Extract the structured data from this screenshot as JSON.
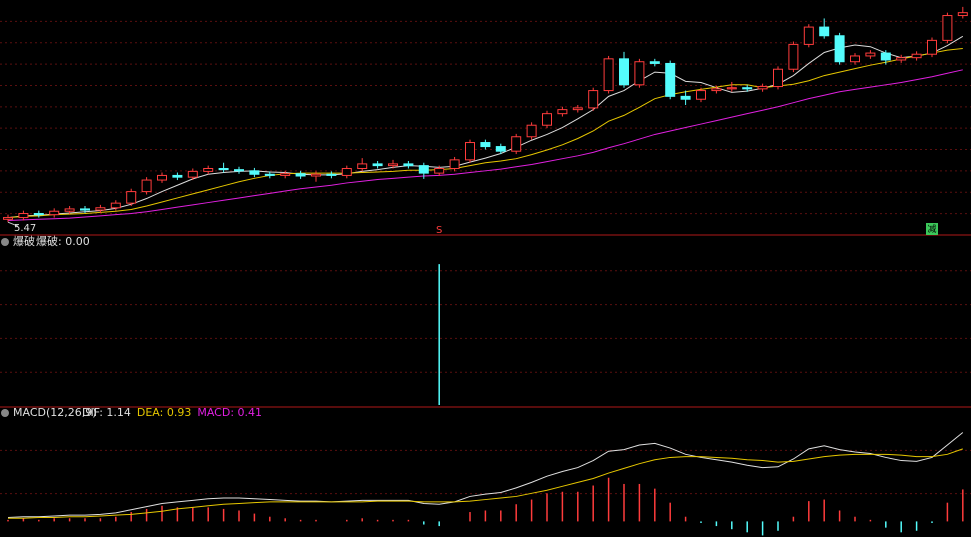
{
  "chart_data": [
    {
      "type": "candlestick",
      "open": [
        5.52,
        5.55,
        5.62,
        5.6,
        5.66,
        5.7,
        5.68,
        5.72,
        5.8,
        6.0,
        6.2,
        6.28,
        6.25,
        6.35,
        6.4,
        6.38,
        6.36,
        6.3,
        6.28,
        6.31,
        6.27,
        6.3,
        6.28,
        6.4,
        6.48,
        6.45,
        6.48,
        6.45,
        6.32,
        6.4,
        6.55,
        6.85,
        6.78,
        6.7,
        6.95,
        7.15,
        7.35,
        7.42,
        7.45,
        7.75,
        8.3,
        7.85,
        8.25,
        8.22,
        7.65,
        7.6,
        7.75,
        7.78,
        7.8,
        7.78,
        7.82,
        8.12,
        8.55,
        8.85,
        8.7,
        8.25,
        8.35,
        8.4,
        8.28,
        8.32,
        8.38,
        8.62,
        9.05
      ],
      "high": [
        5.6,
        5.67,
        5.67,
        5.71,
        5.75,
        5.75,
        5.77,
        5.85,
        6.05,
        6.25,
        6.33,
        6.33,
        6.4,
        6.45,
        6.5,
        6.43,
        6.41,
        6.35,
        6.36,
        6.36,
        6.35,
        6.35,
        6.45,
        6.58,
        6.53,
        6.55,
        6.53,
        6.5,
        6.45,
        6.6,
        6.9,
        6.9,
        6.83,
        7.0,
        7.2,
        7.4,
        7.47,
        7.5,
        7.8,
        8.35,
        8.42,
        8.3,
        8.3,
        8.27,
        7.75,
        7.8,
        7.83,
        7.9,
        7.85,
        7.87,
        8.17,
        8.6,
        8.9,
        9.0,
        8.75,
        8.4,
        8.45,
        8.45,
        8.37,
        8.43,
        8.67,
        9.1,
        9.2
      ],
      "low": [
        5.47,
        5.5,
        5.55,
        5.55,
        5.61,
        5.63,
        5.63,
        5.67,
        5.75,
        5.95,
        6.15,
        6.2,
        6.2,
        6.3,
        6.33,
        6.31,
        6.25,
        6.23,
        6.23,
        6.22,
        6.17,
        6.23,
        6.23,
        6.35,
        6.4,
        6.4,
        6.4,
        6.22,
        6.27,
        6.35,
        6.5,
        6.73,
        6.65,
        6.65,
        6.9,
        7.1,
        7.3,
        7.37,
        7.4,
        7.7,
        7.8,
        7.8,
        8.17,
        7.6,
        7.5,
        7.55,
        7.7,
        7.73,
        7.73,
        7.73,
        7.77,
        8.07,
        8.5,
        8.65,
        8.2,
        8.2,
        8.3,
        8.2,
        8.23,
        8.27,
        8.33,
        8.57,
        9.0
      ],
      "close": [
        5.55,
        5.62,
        5.6,
        5.66,
        5.7,
        5.68,
        5.72,
        5.8,
        6.0,
        6.2,
        6.28,
        6.25,
        6.35,
        6.4,
        6.38,
        6.36,
        6.3,
        6.28,
        6.31,
        6.27,
        6.3,
        6.28,
        6.4,
        6.48,
        6.45,
        6.48,
        6.45,
        6.32,
        6.4,
        6.55,
        6.85,
        6.78,
        6.7,
        6.95,
        7.15,
        7.35,
        7.42,
        7.45,
        7.75,
        8.3,
        7.85,
        8.25,
        8.22,
        7.65,
        7.6,
        7.75,
        7.78,
        7.8,
        7.78,
        7.82,
        8.12,
        8.55,
        8.85,
        8.7,
        8.25,
        8.35,
        8.4,
        8.28,
        8.32,
        8.38,
        8.62,
        9.05,
        9.1
      ],
      "up_color": "#ff3c3c",
      "down_color": "#54fcfc",
      "series": [
        {
          "color": "#dcdcdc",
          "values": [
            5.55,
            5.58,
            5.59,
            5.61,
            5.63,
            5.65,
            5.67,
            5.71,
            5.78,
            5.88,
            6.0,
            6.11,
            6.22,
            6.3,
            6.33,
            6.35,
            6.36,
            6.34,
            6.33,
            6.3,
            6.29,
            6.29,
            6.31,
            6.35,
            6.38,
            6.42,
            6.45,
            6.44,
            6.42,
            6.44,
            6.51,
            6.58,
            6.66,
            6.77,
            6.89,
            6.99,
            7.11,
            7.26,
            7.42,
            7.65,
            7.75,
            7.92,
            8.07,
            8.05,
            7.91,
            7.89,
            7.8,
            7.72,
            7.74,
            7.79,
            7.86,
            8.01,
            8.22,
            8.41,
            8.49,
            8.54,
            8.51,
            8.4,
            8.32,
            8.35,
            8.4,
            8.53,
            8.69
          ]
        },
        {
          "color": "#e6c700",
          "values": [
            5.55,
            5.57,
            5.58,
            5.6,
            5.61,
            5.62,
            5.64,
            5.66,
            5.69,
            5.75,
            5.82,
            5.89,
            5.96,
            6.03,
            6.1,
            6.17,
            6.23,
            6.28,
            6.31,
            6.32,
            6.32,
            6.32,
            6.32,
            6.33,
            6.34,
            6.35,
            6.37,
            6.37,
            6.38,
            6.4,
            6.45,
            6.5,
            6.53,
            6.57,
            6.64,
            6.72,
            6.81,
            6.92,
            7.05,
            7.22,
            7.32,
            7.46,
            7.61,
            7.68,
            7.73,
            7.77,
            7.81,
            7.85,
            7.85,
            7.8,
            7.83,
            7.86,
            7.92,
            8.01,
            8.07,
            8.13,
            8.19,
            8.24,
            8.3,
            8.35,
            8.4,
            8.45,
            8.48
          ]
        },
        {
          "color": "#e020e0",
          "values": [
            5.5,
            5.51,
            5.52,
            5.53,
            5.54,
            5.56,
            5.58,
            5.6,
            5.62,
            5.65,
            5.69,
            5.73,
            5.77,
            5.81,
            5.85,
            5.89,
            5.93,
            5.97,
            6.01,
            6.05,
            6.08,
            6.11,
            6.15,
            6.18,
            6.21,
            6.23,
            6.25,
            6.27,
            6.28,
            6.3,
            6.33,
            6.36,
            6.39,
            6.43,
            6.47,
            6.52,
            6.57,
            6.62,
            6.68,
            6.76,
            6.83,
            6.91,
            6.99,
            7.05,
            7.11,
            7.17,
            7.23,
            7.29,
            7.35,
            7.41,
            7.47,
            7.54,
            7.61,
            7.67,
            7.73,
            7.77,
            7.81,
            7.85,
            7.89,
            7.94,
            7.99,
            8.05,
            8.11
          ]
        }
      ],
      "signals": [
        {
          "at": 28,
          "label": "S",
          "color": "#ff3c3c"
        },
        {
          "at": 60,
          "label": "减",
          "color": "#3cc85a"
        }
      ],
      "ylim": [
        5.3,
        9.25
      ]
    },
    {
      "type": "bar",
      "title": "爆破",
      "readout": "爆破: 0.00",
      "color": "#54fcfc",
      "values": [
        0,
        0,
        0,
        0,
        0,
        0,
        0,
        0,
        0,
        0,
        0,
        0,
        0,
        0,
        0,
        0,
        0,
        0,
        0,
        0,
        0,
        0,
        0,
        0,
        0,
        0,
        0,
        0,
        1,
        0,
        0,
        0,
        0,
        0,
        0,
        0,
        0,
        0,
        0,
        0,
        0,
        0,
        0,
        0,
        0,
        0,
        0,
        0,
        0,
        0,
        0,
        0,
        0,
        0,
        0,
        0,
        0,
        0,
        0,
        0,
        0,
        0,
        0
      ],
      "ylim": [
        0,
        1.1
      ]
    },
    {
      "type": "macd",
      "title": "MACD(12,26,9)",
      "series": [
        {
          "label": "DIF: 1.14",
          "color": "#e0e0e0",
          "values": [
            0.05,
            0.06,
            0.06,
            0.07,
            0.08,
            0.08,
            0.09,
            0.11,
            0.15,
            0.19,
            0.23,
            0.25,
            0.27,
            0.29,
            0.3,
            0.3,
            0.29,
            0.28,
            0.27,
            0.26,
            0.26,
            0.25,
            0.26,
            0.27,
            0.27,
            0.27,
            0.27,
            0.23,
            0.22,
            0.25,
            0.32,
            0.35,
            0.37,
            0.43,
            0.5,
            0.58,
            0.64,
            0.69,
            0.78,
            0.9,
            0.92,
            0.98,
            1.0,
            0.94,
            0.86,
            0.82,
            0.79,
            0.76,
            0.72,
            0.69,
            0.7,
            0.8,
            0.93,
            0.97,
            0.92,
            0.89,
            0.87,
            0.82,
            0.78,
            0.77,
            0.82,
            0.98,
            1.14
          ]
        },
        {
          "label": "DEA: 0.93",
          "color": "#e6c700",
          "values": [
            0.04,
            0.04,
            0.05,
            0.05,
            0.06,
            0.06,
            0.07,
            0.08,
            0.09,
            0.11,
            0.13,
            0.16,
            0.18,
            0.2,
            0.22,
            0.23,
            0.24,
            0.25,
            0.25,
            0.25,
            0.25,
            0.25,
            0.25,
            0.25,
            0.26,
            0.26,
            0.26,
            0.25,
            0.25,
            0.25,
            0.26,
            0.28,
            0.3,
            0.32,
            0.36,
            0.4,
            0.45,
            0.5,
            0.55,
            0.62,
            0.68,
            0.74,
            0.79,
            0.82,
            0.83,
            0.83,
            0.82,
            0.81,
            0.79,
            0.78,
            0.76,
            0.77,
            0.8,
            0.83,
            0.85,
            0.86,
            0.86,
            0.86,
            0.85,
            0.83,
            0.83,
            0.86,
            0.93
          ]
        },
        {
          "label": "MACD: 0.41",
          "color": "#e020e0",
          "bars": true,
          "values": [
            0.02,
            0.04,
            0.02,
            0.04,
            0.04,
            0.04,
            0.04,
            0.06,
            0.12,
            0.16,
            0.2,
            0.18,
            0.18,
            0.18,
            0.16,
            0.14,
            0.1,
            0.06,
            0.04,
            0.02,
            0.02,
            0.0,
            0.02,
            0.04,
            0.02,
            0.02,
            0.02,
            -0.04,
            -0.06,
            0.0,
            0.12,
            0.14,
            0.14,
            0.22,
            0.28,
            0.36,
            0.38,
            0.38,
            0.46,
            0.56,
            0.48,
            0.48,
            0.42,
            0.24,
            0.06,
            -0.02,
            -0.06,
            -0.1,
            -0.14,
            -0.18,
            -0.12,
            0.06,
            0.26,
            0.28,
            0.14,
            0.06,
            0.02,
            -0.08,
            -0.14,
            -0.12,
            -0.02,
            0.24,
            0.41
          ]
        }
      ],
      "up_color": "#ff3c3c",
      "down_color": "#54fcfc",
      "ylim": [
        -0.2,
        1.3
      ]
    }
  ]
}
